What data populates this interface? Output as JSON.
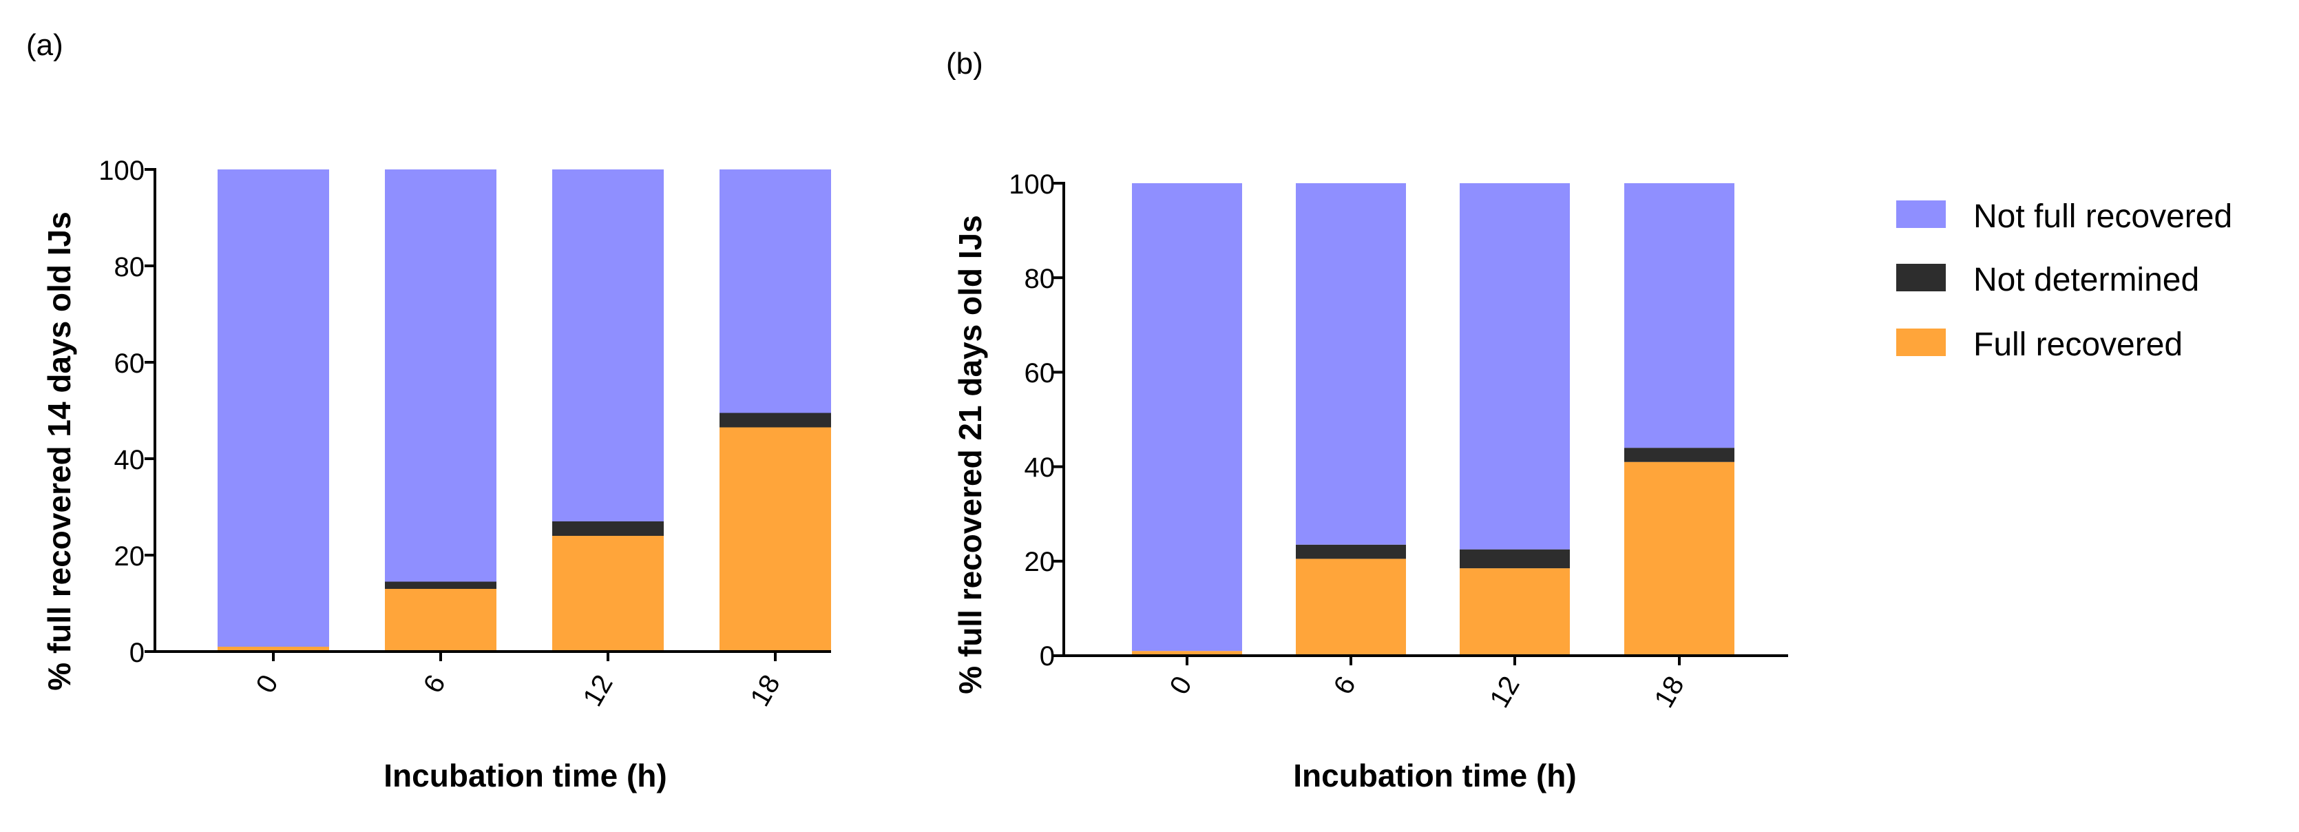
{
  "chart_data": [
    {
      "type": "bar",
      "stacked": true,
      "panel_label": "(a)",
      "categories": [
        "0",
        "6",
        "12",
        "18"
      ],
      "series": [
        {
          "name": "Full recovered",
          "color": "#FFA53A",
          "values": [
            1.0,
            13.0,
            24.0,
            46.5
          ]
        },
        {
          "name": "Not determined",
          "color": "#2D2D2D",
          "values": [
            0.0,
            1.5,
            3.0,
            3.0
          ]
        },
        {
          "name": "Not full recovered",
          "color": "#8F8FFF",
          "values": [
            99.0,
            85.5,
            73.0,
            50.5
          ]
        }
      ],
      "xlabel": "Incubation time (h)",
      "ylabel": "% full recovered 14 days old IJs",
      "ylim": [
        0,
        100
      ],
      "yticks": [
        "0",
        "20",
        "40",
        "60",
        "80",
        "100"
      ],
      "grid": false
    },
    {
      "type": "bar",
      "stacked": true,
      "panel_label": "(b)",
      "categories": [
        "0",
        "6",
        "12",
        "18"
      ],
      "series": [
        {
          "name": "Full recovered",
          "color": "#FFA53A",
          "values": [
            1.0,
            20.5,
            18.5,
            41.0
          ]
        },
        {
          "name": "Not determined",
          "color": "#2D2D2D",
          "values": [
            0.0,
            3.0,
            4.0,
            3.0
          ]
        },
        {
          "name": "Not full recovered",
          "color": "#8F8FFF",
          "values": [
            99.0,
            76.5,
            77.5,
            56.0
          ]
        }
      ],
      "xlabel": "Incubation time (h)",
      "ylabel": "% full recovered 21 days old IJs",
      "ylim": [
        0,
        100
      ],
      "yticks": [
        "0",
        "20",
        "40",
        "60",
        "80",
        "100"
      ],
      "grid": false
    }
  ],
  "legend": {
    "position": "right",
    "items": [
      {
        "label": "Not full recovered",
        "color": "#8F8FFF"
      },
      {
        "label": "Not determined",
        "color": "#2D2D2D"
      },
      {
        "label": "Full recovered",
        "color": "#FFA53A"
      }
    ]
  }
}
